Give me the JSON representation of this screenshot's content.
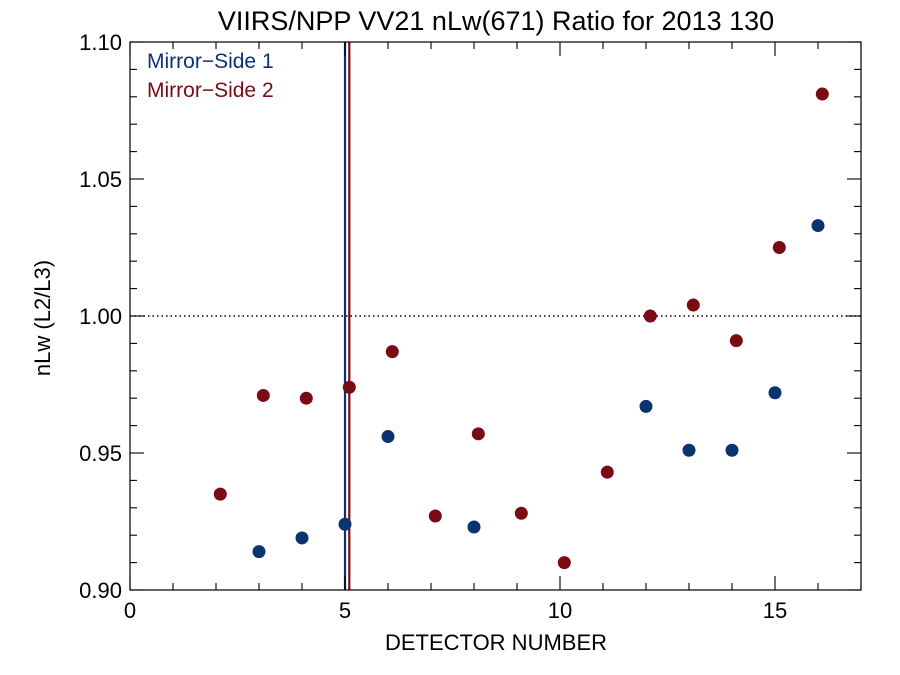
{
  "chart_data": {
    "type": "scatter",
    "title": "VIIRS/NPP VV21 nLw(671) Ratio for 2013 130",
    "xlabel": "DETECTOR NUMBER",
    "ylabel": "nLw (L2/L3)",
    "xlim": [
      0,
      17
    ],
    "ylim": [
      0.9,
      1.1
    ],
    "x_ticks": [
      0,
      5,
      10,
      15
    ],
    "x_tick_labels": [
      "0",
      "5",
      "10",
      "15"
    ],
    "x_minor_step": 1,
    "y_ticks": [
      0.9,
      0.95,
      1.0,
      1.05,
      1.1
    ],
    "y_tick_labels": [
      "0.90",
      "0.95",
      "1.00",
      "1.05",
      "1.10"
    ],
    "y_minor_step": 0.01,
    "reference_line": {
      "y": 1.0,
      "style": "dotted",
      "color": "#000000"
    },
    "legend_position": "top-left",
    "series": [
      {
        "name": "Mirror−Side 1",
        "color": "#0b3370",
        "x": [
          3,
          4,
          5,
          6,
          8,
          12,
          13,
          14,
          15,
          16
        ],
        "y": [
          0.914,
          0.919,
          0.924,
          0.956,
          0.923,
          0.967,
          0.951,
          0.951,
          0.972,
          1.033
        ],
        "vline_x": 5.0
      },
      {
        "name": "Mirror−Side 2",
        "color": "#7a0a14",
        "x": [
          2.1,
          3.1,
          4.1,
          5.1,
          6.1,
          7.1,
          8.1,
          9.1,
          10.1,
          11.1,
          12.1,
          13.1,
          14.1,
          15.1,
          16.1
        ],
        "y": [
          0.935,
          0.971,
          0.97,
          0.974,
          0.987,
          0.927,
          0.957,
          0.928,
          0.91,
          0.943,
          1.0,
          1.004,
          0.991,
          1.025,
          1.081
        ],
        "vline_x": 5.1
      }
    ]
  }
}
